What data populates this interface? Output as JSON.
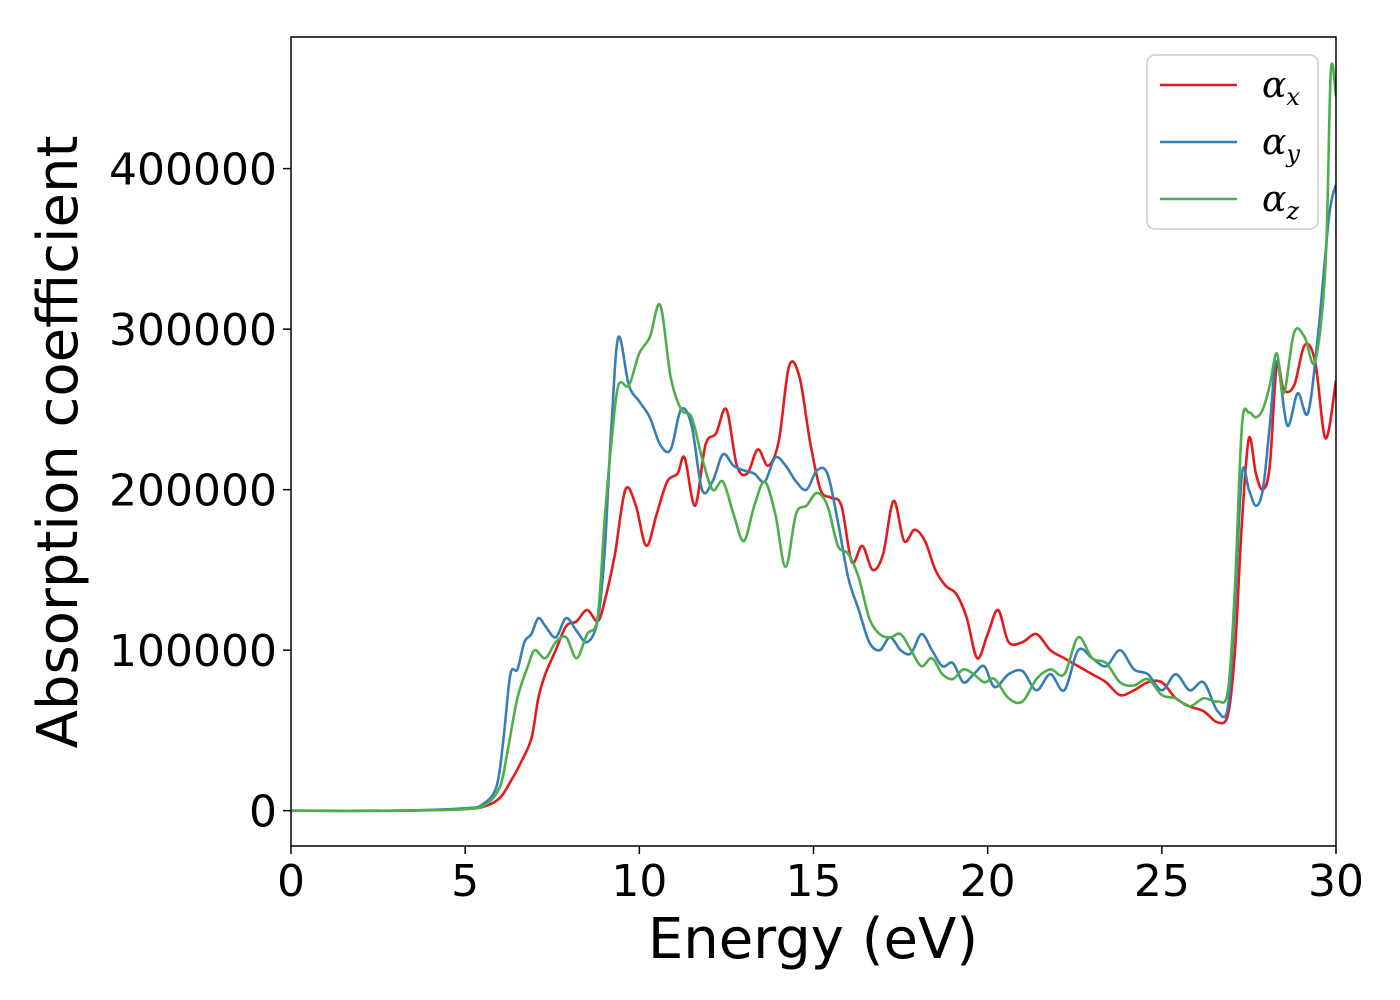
{
  "chart_data": {
    "type": "line",
    "title": "",
    "xlabel": "Energy (eV)",
    "ylabel": "Absorption coefficient",
    "xlim": [
      0,
      30
    ],
    "ylim": [
      -22000,
      482000
    ],
    "x_ticks": [
      0,
      5,
      10,
      15,
      20,
      25,
      30
    ],
    "y_ticks": [
      0,
      100000,
      200000,
      300000,
      400000
    ],
    "x_tick_labels": [
      "0",
      "5",
      "10",
      "15",
      "20",
      "25",
      "30"
    ],
    "y_tick_labels": [
      "0",
      "100000",
      "200000",
      "300000",
      "400000"
    ],
    "grid": false,
    "legend_position": "top-right",
    "series": [
      {
        "name": "αx",
        "symbol": "α",
        "subscript": "x",
        "color": "#e41a1c",
        "x": [
          0,
          3,
          5,
          5.6,
          6.0,
          6.3,
          6.6,
          6.9,
          7.1,
          7.3,
          7.6,
          7.9,
          8.2,
          8.5,
          8.8,
          9.0,
          9.3,
          9.6,
          9.9,
          10.2,
          10.5,
          10.8,
          11.1,
          11.3,
          11.6,
          11.9,
          12.2,
          12.5,
          12.8,
          13.1,
          13.4,
          13.7,
          14.0,
          14.3,
          14.6,
          14.9,
          15.2,
          15.5,
          15.8,
          16.1,
          16.4,
          16.7,
          17.0,
          17.3,
          17.6,
          17.9,
          18.2,
          18.5,
          18.8,
          19.1,
          19.4,
          19.7,
          20.0,
          20.3,
          20.6,
          21.0,
          21.4,
          21.8,
          22.2,
          22.6,
          23.0,
          23.4,
          23.8,
          24.2,
          24.6,
          25.0,
          25.4,
          25.8,
          26.2,
          26.6,
          26.9,
          27.1,
          27.3,
          27.5,
          27.7,
          27.9,
          28.1,
          28.3,
          28.5,
          28.8,
          29.1,
          29.4,
          29.7,
          30
        ],
        "y": [
          0,
          0,
          1000,
          3000,
          8000,
          18000,
          30000,
          45000,
          70000,
          85000,
          100000,
          115000,
          118000,
          125000,
          118000,
          130000,
          160000,
          200000,
          190000,
          165000,
          185000,
          205000,
          210000,
          220000,
          190000,
          228000,
          235000,
          250000,
          215000,
          210000,
          225000,
          215000,
          230000,
          277000,
          270000,
          230000,
          200000,
          195000,
          190000,
          155000,
          165000,
          150000,
          160000,
          193000,
          168000,
          175000,
          168000,
          150000,
          140000,
          135000,
          120000,
          95000,
          110000,
          125000,
          105000,
          105000,
          110000,
          100000,
          95000,
          90000,
          85000,
          80000,
          72000,
          75000,
          80000,
          80000,
          70000,
          65000,
          62000,
          55000,
          60000,
          100000,
          180000,
          232000,
          210000,
          200000,
          215000,
          278000,
          262000,
          265000,
          290000,
          280000,
          232000,
          268000
        ]
      },
      {
        "name": "αy",
        "symbol": "α",
        "subscript": "y",
        "color": "#377eb8",
        "x": [
          0,
          3,
          5,
          5.5,
          5.9,
          6.1,
          6.3,
          6.5,
          6.7,
          6.9,
          7.1,
          7.3,
          7.6,
          7.9,
          8.2,
          8.5,
          8.8,
          9.0,
          9.2,
          9.4,
          9.7,
          10.0,
          10.3,
          10.6,
          10.9,
          11.2,
          11.5,
          11.8,
          12.1,
          12.4,
          12.7,
          13.0,
          13.3,
          13.6,
          13.9,
          14.2,
          14.5,
          14.8,
          15.1,
          15.4,
          15.7,
          16.0,
          16.3,
          16.6,
          16.9,
          17.2,
          17.5,
          17.8,
          18.1,
          18.4,
          18.7,
          19.0,
          19.3,
          19.6,
          19.9,
          20.2,
          20.6,
          21.0,
          21.4,
          21.8,
          22.2,
          22.6,
          23.0,
          23.4,
          23.8,
          24.2,
          24.6,
          25.0,
          25.4,
          25.8,
          26.2,
          26.6,
          26.9,
          27.1,
          27.3,
          27.5,
          27.7,
          27.9,
          28.1,
          28.3,
          28.6,
          28.9,
          29.2,
          29.5,
          29.8,
          30
        ],
        "y": [
          0,
          0,
          1500,
          4000,
          15000,
          45000,
          85000,
          88000,
          105000,
          110000,
          120000,
          115000,
          108000,
          120000,
          112000,
          105000,
          118000,
          160000,
          240000,
          295000,
          265000,
          255000,
          245000,
          228000,
          225000,
          250000,
          240000,
          200000,
          205000,
          222000,
          215000,
          212000,
          210000,
          205000,
          220000,
          215000,
          205000,
          200000,
          212000,
          210000,
          180000,
          145000,
          125000,
          105000,
          100000,
          108000,
          100000,
          98000,
          110000,
          100000,
          90000,
          92000,
          80000,
          85000,
          90000,
          77000,
          85000,
          87000,
          75000,
          85000,
          75000,
          100000,
          95000,
          90000,
          100000,
          88000,
          85000,
          75000,
          85000,
          75000,
          80000,
          62000,
          65000,
          130000,
          210000,
          200000,
          190000,
          200000,
          240000,
          280000,
          240000,
          260000,
          248000,
          300000,
          370000,
          390000
        ]
      },
      {
        "name": "αz",
        "symbol": "α",
        "subscript": "z",
        "color": "#4daf4a",
        "x": [
          0,
          3,
          5,
          5.6,
          6.0,
          6.2,
          6.5,
          6.8,
          7.0,
          7.3,
          7.6,
          7.9,
          8.2,
          8.5,
          8.8,
          9.0,
          9.2,
          9.4,
          9.7,
          10.0,
          10.3,
          10.6,
          10.9,
          11.2,
          11.5,
          11.8,
          12.1,
          12.4,
          12.7,
          13.0,
          13.3,
          13.6,
          13.9,
          14.2,
          14.5,
          14.8,
          15.1,
          15.4,
          15.7,
          16.0,
          16.3,
          16.6,
          16.9,
          17.2,
          17.5,
          17.8,
          18.1,
          18.4,
          18.7,
          19.0,
          19.3,
          19.6,
          19.9,
          20.2,
          20.6,
          21.0,
          21.4,
          21.8,
          22.2,
          22.6,
          23.0,
          23.4,
          23.8,
          24.2,
          24.6,
          25.0,
          25.4,
          25.8,
          26.2,
          26.6,
          26.9,
          27.1,
          27.3,
          27.5,
          27.7,
          27.9,
          28.1,
          28.3,
          28.5,
          28.8,
          29.1,
          29.4,
          29.7,
          29.85,
          30
        ],
        "y": [
          0,
          0,
          1000,
          4000,
          15000,
          35000,
          70000,
          90000,
          100000,
          95000,
          105000,
          108000,
          95000,
          110000,
          120000,
          180000,
          230000,
          265000,
          265000,
          285000,
          295000,
          315000,
          270000,
          250000,
          245000,
          220000,
          200000,
          205000,
          185000,
          168000,
          190000,
          205000,
          185000,
          152000,
          185000,
          190000,
          198000,
          190000,
          165000,
          160000,
          145000,
          120000,
          110000,
          108000,
          110000,
          100000,
          90000,
          95000,
          85000,
          82000,
          88000,
          85000,
          80000,
          82000,
          70000,
          68000,
          82000,
          88000,
          85000,
          108000,
          95000,
          92000,
          80000,
          78000,
          82000,
          72000,
          70000,
          65000,
          70000,
          68000,
          75000,
          140000,
          240000,
          248000,
          245000,
          250000,
          265000,
          285000,
          260000,
          298000,
          295000,
          280000,
          340000,
          460000,
          445000
        ]
      }
    ]
  }
}
